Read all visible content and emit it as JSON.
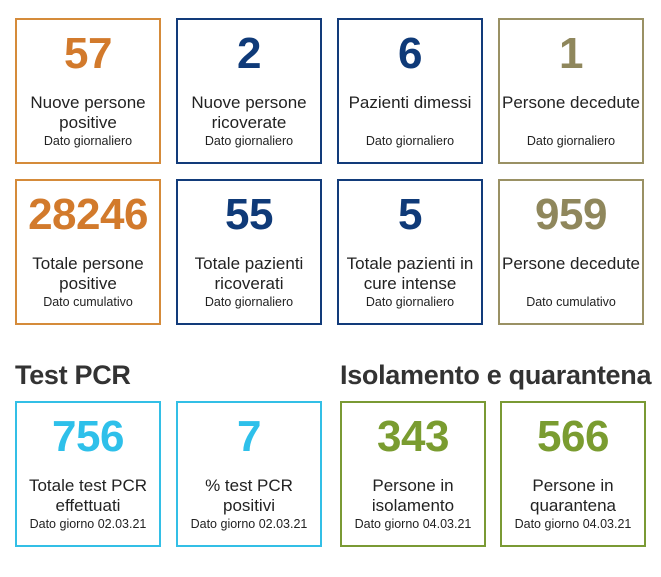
{
  "daily": [
    {
      "value": "57",
      "label": "Nuove persone positive",
      "sub": "Dato giornaliero"
    },
    {
      "value": "2",
      "label": "Nuove persone ricoverate",
      "sub": "Dato giornaliero"
    },
    {
      "value": "6",
      "label": "Pazienti dimessi",
      "sub": "Dato giornaliero"
    },
    {
      "value": "1",
      "label": "Persone decedute",
      "sub": "Dato giornaliero"
    }
  ],
  "totals": [
    {
      "value": "28246",
      "label": "Totale persone positive",
      "sub": "Dato cumulativo"
    },
    {
      "value": "55",
      "label": "Totale pazienti ricoverati",
      "sub": "Dato giornaliero"
    },
    {
      "value": "5",
      "label": "Totale pazienti in cure intense",
      "sub": "Dato giornaliero"
    },
    {
      "value": "959",
      "label": "Persone decedute",
      "sub": "Dato cumulativo"
    }
  ],
  "test_section": {
    "title": "Test PCR",
    "cards": [
      {
        "value": "756",
        "label": "Totale test PCR effettuati",
        "sub": "Dato giorno 02.03.21"
      },
      {
        "value": "7",
        "label": "% test PCR positivi",
        "sub": "Dato giorno 02.03.21"
      }
    ]
  },
  "isolation_section": {
    "title": "Isolamento e quarantena",
    "cards": [
      {
        "value": "343",
        "label": "Persone in isolamento",
        "sub": "Dato giorno 04.03.21"
      },
      {
        "value": "566",
        "label": "Persone in quarantena",
        "sub": "Dato giorno 04.03.21"
      }
    ]
  },
  "colors": {
    "orange": "#d27a2c",
    "blue": "#0f3a78",
    "olive": "#8f875c",
    "cyan": "#2ec0ea",
    "green": "#7a9c30"
  }
}
